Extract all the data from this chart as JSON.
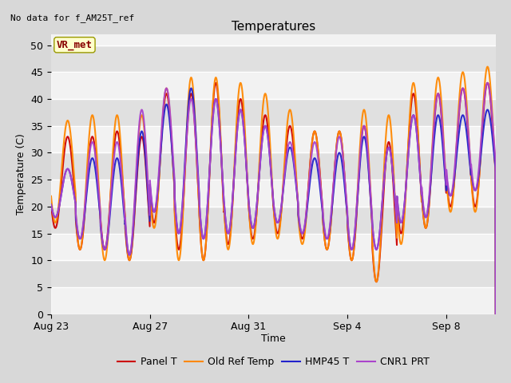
{
  "title": "Temperatures",
  "no_data_text": "No data for f_AM25T_ref",
  "vr_met_label": "VR_met",
  "ylabel": "Temperature (C)",
  "xlabel": "Time",
  "ylim": [
    0,
    52
  ],
  "yticks": [
    0,
    5,
    10,
    15,
    20,
    25,
    30,
    35,
    40,
    45,
    50
  ],
  "background_color": "#d8d8d8",
  "plot_bg_color": "#e0e0e0",
  "legend": [
    {
      "label": "Panel T",
      "color": "#cc0000",
      "lw": 1.5,
      "ls": "-"
    },
    {
      "label": "Old Ref Temp",
      "color": "#ff8800",
      "lw": 1.5,
      "ls": "-"
    },
    {
      "label": "HMP45 T",
      "color": "#2222cc",
      "lw": 1.5,
      "ls": "-"
    },
    {
      "label": "CNR1 PRT",
      "color": "#aa44cc",
      "lw": 1.5,
      "ls": "-"
    }
  ],
  "x_tick_labels": [
    "Aug 23",
    "Aug 27",
    "Aug 31",
    "Sep 4",
    "Sep 8"
  ],
  "x_tick_positions": [
    0,
    4,
    8,
    12,
    16
  ],
  "days": 18,
  "panel_t_peaks": [
    33,
    33,
    34,
    33,
    41,
    41,
    43,
    40,
    37,
    35,
    34,
    34,
    35,
    32,
    41,
    41,
    42,
    43
  ],
  "panel_t_troughs": [
    16,
    12,
    12,
    10,
    17,
    12,
    10,
    13,
    14,
    15,
    14,
    12,
    10,
    6,
    15,
    16,
    20,
    20
  ],
  "old_ref_peaks": [
    36,
    37,
    37,
    37,
    42,
    44,
    44,
    43,
    41,
    38,
    34,
    34,
    38,
    37,
    43,
    44,
    45,
    46
  ],
  "old_ref_troughs": [
    17,
    12,
    10,
    10,
    16,
    10,
    10,
    12,
    13,
    14,
    13,
    12,
    10,
    6,
    13,
    16,
    19,
    19
  ],
  "hmp45_peaks": [
    27,
    29,
    29,
    34,
    39,
    42,
    40,
    38,
    35,
    31,
    29,
    30,
    33,
    31,
    37,
    37,
    37,
    38
  ],
  "hmp45_troughs": [
    18,
    14,
    12,
    11,
    19,
    15,
    14,
    15,
    16,
    17,
    15,
    14,
    12,
    12,
    17,
    18,
    22,
    23
  ],
  "cnr1_peaks": [
    27,
    32,
    32,
    38,
    42,
    40,
    40,
    38,
    35,
    32,
    32,
    33,
    35,
    31,
    37,
    41,
    42,
    43
  ],
  "cnr1_troughs": [
    18,
    14,
    12,
    11,
    19,
    15,
    14,
    15,
    16,
    17,
    15,
    14,
    12,
    12,
    17,
    18,
    22,
    23
  ],
  "figsize": [
    6.4,
    4.8
  ],
  "dpi": 100,
  "title_fontsize": 11,
  "tick_fontsize": 9,
  "label_fontsize": 9,
  "legend_fontsize": 9,
  "no_data_fontsize": 8,
  "vr_met_fontsize": 9,
  "legend_dash_color": "#cc0000",
  "legend_dash_color2": "#ff8800",
  "legend_solid_color3": "#2222cc",
  "legend_solid_color4": "#aa44cc"
}
